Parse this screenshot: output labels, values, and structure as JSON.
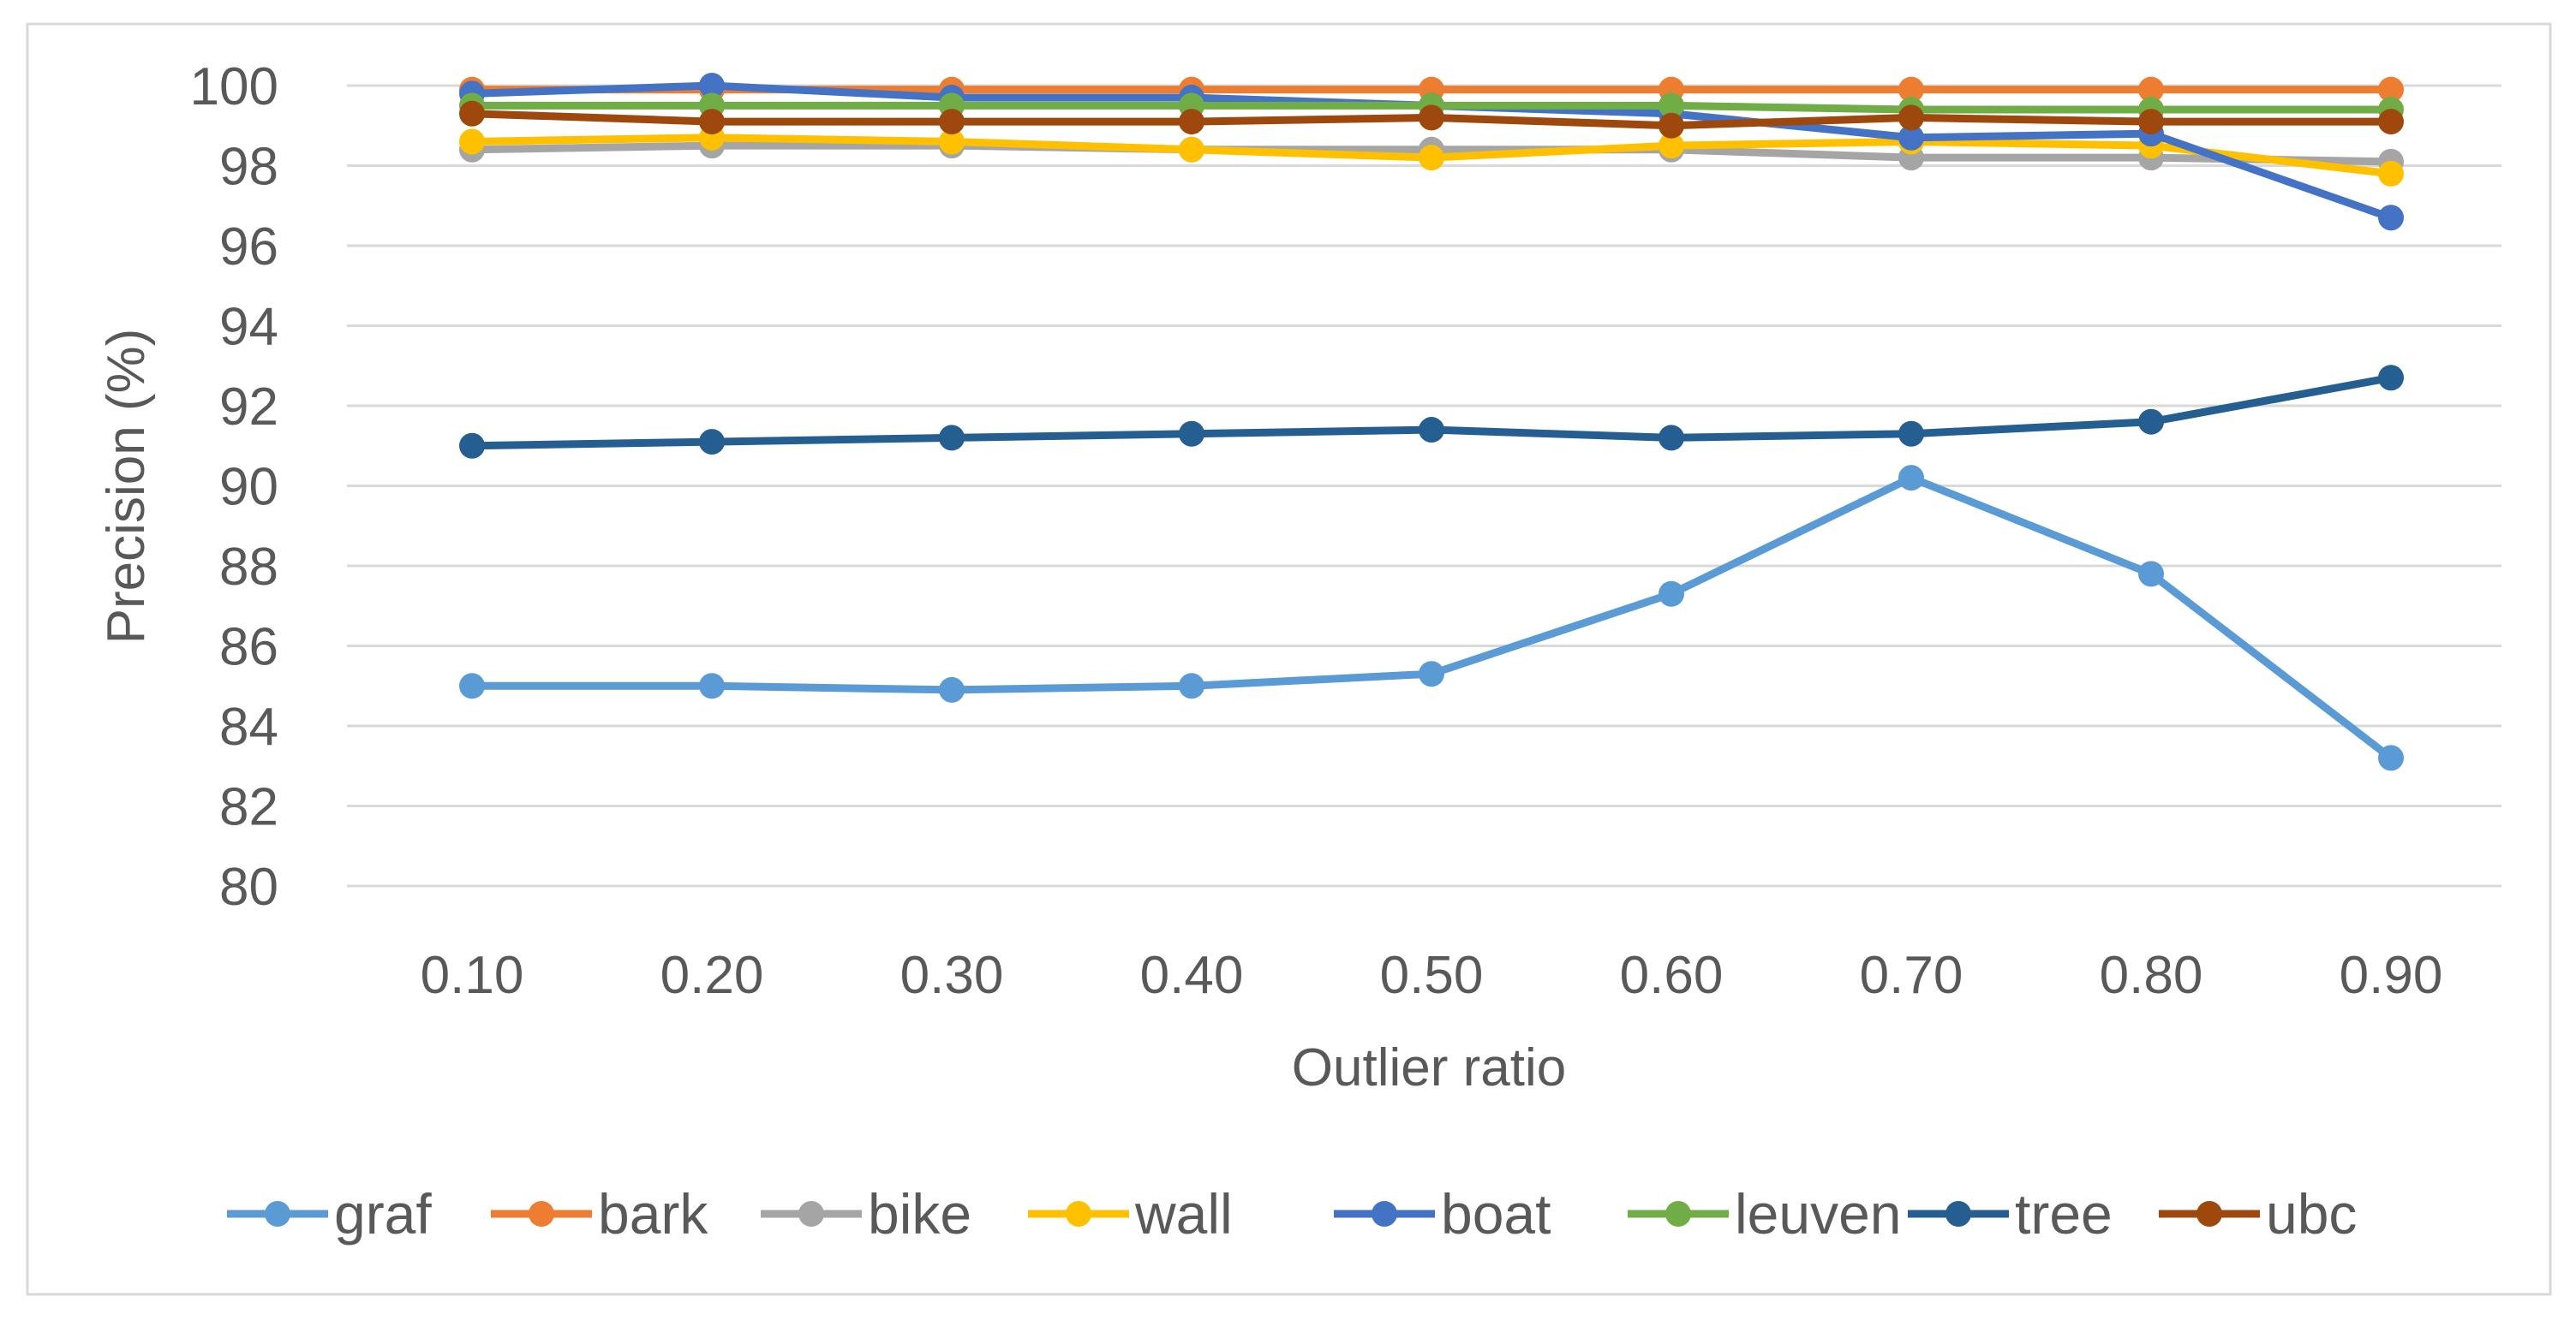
{
  "chart_data": {
    "type": "line",
    "title": "",
    "xlabel": "Outlier ratio",
    "ylabel": "Precision (%)",
    "categories": [
      "0.10",
      "0.20",
      "0.30",
      "0.40",
      "0.50",
      "0.60",
      "0.70",
      "0.80",
      "0.90"
    ],
    "ylim": [
      80,
      100
    ],
    "yticks": [
      "80",
      "82",
      "84",
      "86",
      "88",
      "90",
      "92",
      "94",
      "96",
      "98",
      "100"
    ],
    "grid": true,
    "legend_position": "bottom",
    "series": [
      {
        "name": "graf",
        "color": "#5B9BD5",
        "values": [
          85.0,
          85.0,
          84.9,
          85.0,
          85.3,
          87.3,
          90.2,
          87.8,
          83.2
        ]
      },
      {
        "name": "bark",
        "color": "#ED7D31",
        "values": [
          99.9,
          99.9,
          99.9,
          99.9,
          99.9,
          99.9,
          99.9,
          99.9,
          99.9
        ]
      },
      {
        "name": "bike",
        "color": "#A5A5A5",
        "values": [
          98.4,
          98.5,
          98.5,
          98.4,
          98.4,
          98.4,
          98.2,
          98.2,
          98.1
        ]
      },
      {
        "name": "wall",
        "color": "#FFC000",
        "values": [
          98.6,
          98.7,
          98.6,
          98.4,
          98.2,
          98.5,
          98.6,
          98.5,
          97.8
        ]
      },
      {
        "name": "boat",
        "color": "#4472C4",
        "values": [
          99.8,
          100.0,
          99.7,
          99.7,
          99.5,
          99.3,
          98.7,
          98.8,
          96.7
        ]
      },
      {
        "name": "leuven",
        "color": "#70AD47",
        "values": [
          99.5,
          99.5,
          99.5,
          99.5,
          99.5,
          99.5,
          99.4,
          99.4,
          99.4
        ]
      },
      {
        "name": "tree",
        "color": "#255E91",
        "values": [
          91.0,
          91.1,
          91.2,
          91.3,
          91.4,
          91.2,
          91.3,
          91.6,
          92.7
        ]
      },
      {
        "name": "ubc",
        "color": "#9E480E",
        "values": [
          99.3,
          99.1,
          99.1,
          99.1,
          99.2,
          99.0,
          99.2,
          99.1,
          99.1
        ]
      }
    ]
  }
}
